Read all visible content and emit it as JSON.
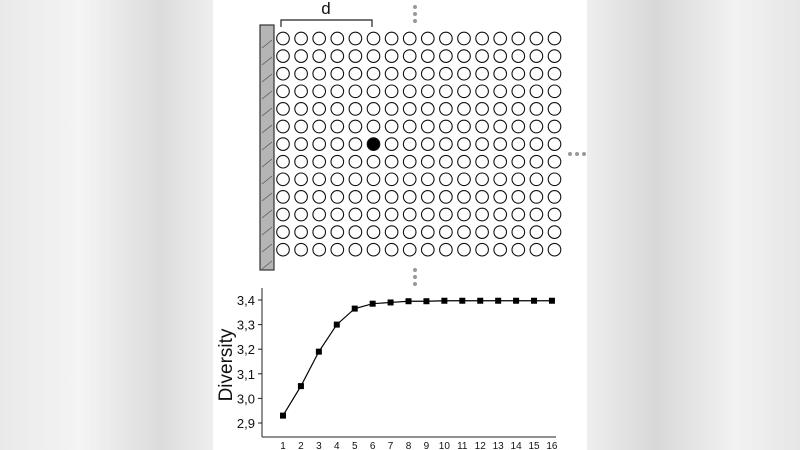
{
  "diagram": {
    "distance_label": "d",
    "grid_columns": 16,
    "grid_rows": 13,
    "highlighted_cell": {
      "column": 6,
      "row": 7
    }
  },
  "chart_data": {
    "type": "line",
    "xlabel": "",
    "ylabel": "Diversity",
    "x": [
      1,
      2,
      3,
      4,
      5,
      6,
      7,
      8,
      9,
      10,
      11,
      12,
      13,
      14,
      15,
      16
    ],
    "series": [
      {
        "values": [
          2.93,
          3.05,
          3.19,
          3.3,
          3.365,
          3.385,
          3.39,
          3.395,
          3.395,
          3.397,
          3.397,
          3.397,
          3.397,
          3.397,
          3.397,
          3.397
        ]
      }
    ],
    "xticks": [
      "1",
      "2",
      "3",
      "4",
      "5",
      "6",
      "7",
      "8",
      "9",
      "10",
      "11",
      "12",
      "13",
      "14",
      "15",
      "16"
    ],
    "yticks": [
      "2,9",
      "3,0",
      "3,1",
      "3,2",
      "3,3",
      "3,4"
    ],
    "ylim": [
      2.87,
      3.45
    ],
    "xlim": [
      0,
      16.3
    ],
    "grid": false,
    "marker": "square",
    "line_color": "#000000"
  }
}
